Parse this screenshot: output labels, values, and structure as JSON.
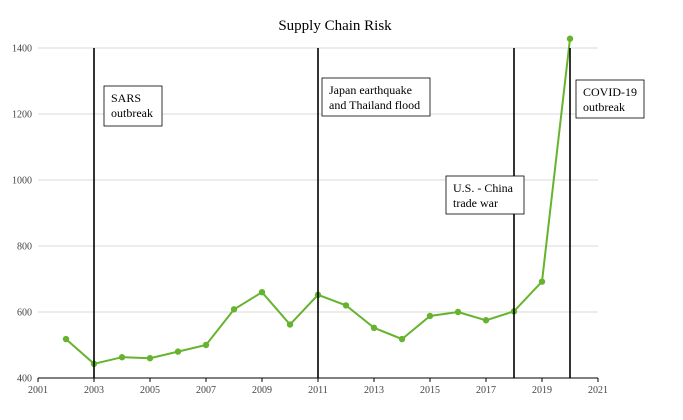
{
  "chart_data": {
    "type": "line",
    "title": "Supply Chain Risk",
    "xlabel": "",
    "ylabel": "",
    "xlim": [
      2001,
      2021
    ],
    "ylim": [
      400,
      1400
    ],
    "x_ticks": [
      "2001",
      "2003",
      "2005",
      "2007",
      "2009",
      "2011",
      "2013",
      "2015",
      "2017",
      "2019",
      "2021"
    ],
    "y_ticks": [
      "400",
      "600",
      "800",
      "1000",
      "1200",
      "1400"
    ],
    "grid": true,
    "series": [
      {
        "color": "#66b32e",
        "x": [
          2002,
          2003,
          2004,
          2005,
          2006,
          2007,
          2008,
          2009,
          2010,
          2011,
          2012,
          2013,
          2014,
          2015,
          2016,
          2017,
          2018,
          2019,
          2020
        ],
        "values": [
          518,
          443,
          463,
          460,
          480,
          500,
          608,
          660,
          562,
          652,
          620,
          552,
          518,
          588,
          600,
          575,
          602,
          692,
          1428
        ]
      }
    ],
    "events": [
      {
        "year": 2003,
        "lines": [
          "SARS",
          "outbreak"
        ]
      },
      {
        "year": 2011,
        "lines": [
          "Japan earthquake",
          "and Thailand flood"
        ]
      },
      {
        "year": 2018,
        "lines": [
          "U.S. - China",
          "trade war"
        ]
      },
      {
        "year": 2020,
        "lines": [
          "COVID-19",
          "outbreak"
        ]
      }
    ]
  }
}
